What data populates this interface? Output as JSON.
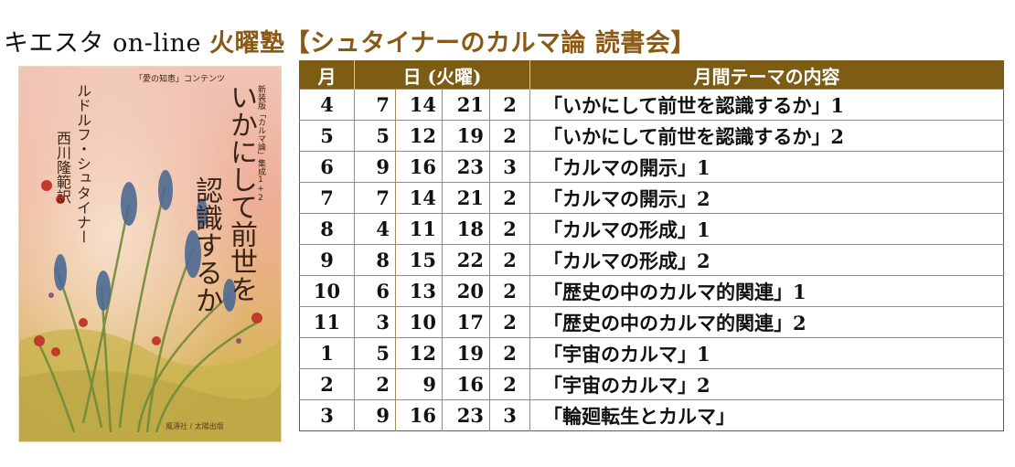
{
  "title": {
    "prefix": "キエスタ on-line ",
    "highlight": "火曜塾【シュタイナーのカルマ論 読書会】"
  },
  "book_cover": {
    "banner": "「愛の知恵」コンテンツ",
    "series": "新装版「カルマ論」集成1+2",
    "book_title_line1": "いかにして前世を",
    "book_title_line2": "認識するか",
    "author": "ルドルフ・シュタイナー",
    "translator": "西川隆範訳",
    "publisher": "風濤社 / 太陽出版"
  },
  "table": {
    "headers": {
      "month": "月",
      "days": "日 (火曜)",
      "theme": "月間テーマの内容"
    },
    "rows": [
      {
        "month": "4",
        "d1": "7",
        "d2": "14",
        "d3": "21",
        "count": "2",
        "theme": "「いかにして前世を認識するか」1"
      },
      {
        "month": "5",
        "d1": "5",
        "d2": "12",
        "d3": "19",
        "count": "2",
        "theme": "「いかにして前世を認識するか」2"
      },
      {
        "month": "6",
        "d1": "9",
        "d2": "16",
        "d3": "23",
        "count": "3",
        "theme": "「カルマの開示」1"
      },
      {
        "month": "7",
        "d1": "7",
        "d2": "14",
        "d3": "21",
        "count": "2",
        "theme": "「カルマの開示」2"
      },
      {
        "month": "8",
        "d1": "4",
        "d2": "11",
        "d3": "18",
        "count": "2",
        "theme": "「カルマの形成」1"
      },
      {
        "month": "9",
        "d1": "8",
        "d2": "15",
        "d3": "22",
        "count": "2",
        "theme": "「カルマの形成」2"
      },
      {
        "month": "10",
        "d1": "6",
        "d2": "13",
        "d3": "20",
        "count": "2",
        "theme": "「歴史の中のカルマ的関連」1"
      },
      {
        "month": "11",
        "d1": "3",
        "d2": "10",
        "d3": "17",
        "count": "2",
        "theme": "「歴史の中のカルマ的関連」2"
      },
      {
        "month": "1",
        "d1": "5",
        "d2": "12",
        "d3": "19",
        "count": "2",
        "theme": "「宇宙のカルマ」1"
      },
      {
        "month": "2",
        "d1": "2",
        "d2": "9",
        "d3": "16",
        "count": "2",
        "theme": "「宇宙のカルマ」2"
      },
      {
        "month": "3",
        "d1": "9",
        "d2": "16",
        "d3": "23",
        "count": "3",
        "theme": "「輪廻転生とカルマ」"
      }
    ]
  },
  "colors": {
    "header_bg": "#7d5d14",
    "title_accent": "#8a5a14",
    "grid_line": "#9e8b5e"
  }
}
